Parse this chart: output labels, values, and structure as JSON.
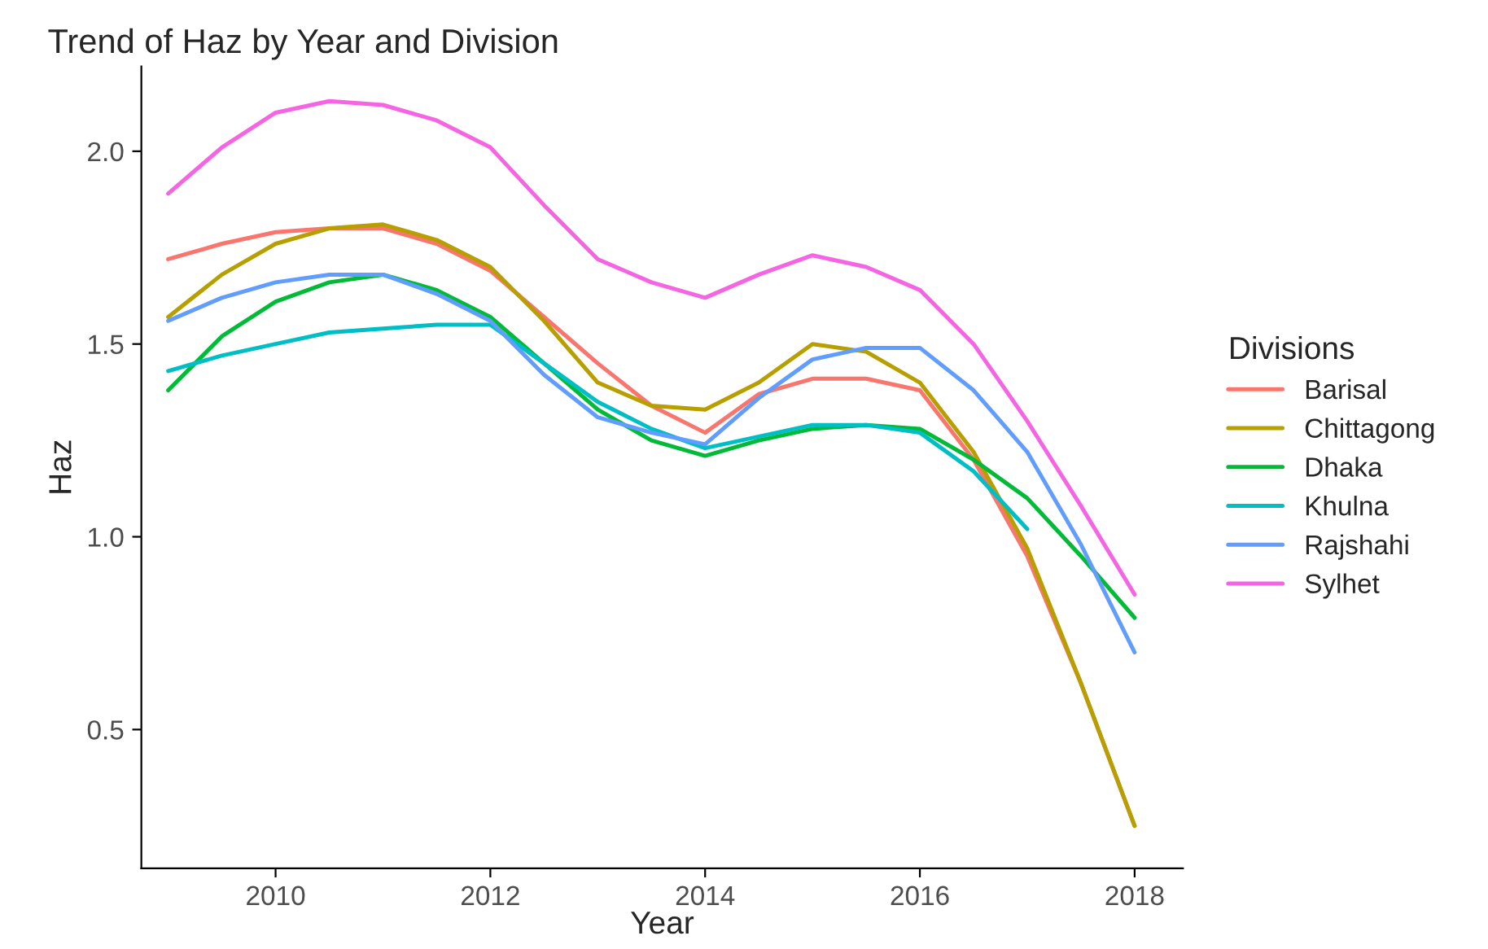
{
  "chart_data": {
    "type": "line",
    "title": "Trend of Haz by Year and Division",
    "xlabel": "Year",
    "ylabel": "Haz",
    "legend_title": "Divisions",
    "legend": "right",
    "grid": false,
    "marker": "none",
    "line_style": "solid",
    "x": [
      2009,
      2009.5,
      2010,
      2010.5,
      2011,
      2011.5,
      2012,
      2012.5,
      2013,
      2013.5,
      2014,
      2014.5,
      2015,
      2015.5,
      2016,
      2016.5,
      2017,
      2017.5,
      2018
    ],
    "xlim": [
      2008.75,
      2018.45
    ],
    "xticks": [
      2010,
      2012,
      2014,
      2016,
      2018
    ],
    "ylim": [
      0.14,
      2.22
    ],
    "yticks": [
      {
        "value": 0.5,
        "label": "0.5"
      },
      {
        "value": 1.0,
        "label": "1.0"
      },
      {
        "value": 1.5,
        "label": "1.5"
      },
      {
        "value": 2.0,
        "label": "2.0"
      }
    ],
    "series": [
      {
        "name": "Barisal",
        "color": "#f8766d",
        "values": [
          1.72,
          1.76,
          1.79,
          1.8,
          1.8,
          1.76,
          1.69,
          1.57,
          1.45,
          1.34,
          1.27,
          1.37,
          1.41,
          1.41,
          1.38,
          1.2,
          0.95,
          0.62,
          0.25
        ]
      },
      {
        "name": "Chittagong",
        "color": "#b79f00",
        "values": [
          1.57,
          1.68,
          1.76,
          1.8,
          1.81,
          1.77,
          1.7,
          1.56,
          1.4,
          1.34,
          1.33,
          1.4,
          1.5,
          1.48,
          1.4,
          1.22,
          0.97,
          0.62,
          0.25
        ]
      },
      {
        "name": "Dhaka",
        "color": "#00ba38",
        "values": [
          1.38,
          1.52,
          1.61,
          1.66,
          1.68,
          1.64,
          1.57,
          1.45,
          1.33,
          1.25,
          1.21,
          1.25,
          1.28,
          1.29,
          1.28,
          1.2,
          1.1,
          0.95,
          0.79
        ]
      },
      {
        "name": "Khulna",
        "color": "#00bfc4",
        "values": [
          1.43,
          1.47,
          1.5,
          1.53,
          1.54,
          1.55,
          1.55,
          1.45,
          1.35,
          1.28,
          1.23,
          1.26,
          1.29,
          1.29,
          1.27,
          1.17,
          1.02,
          null,
          null
        ]
      },
      {
        "name": "Rajshahi",
        "color": "#619cff",
        "values": [
          1.56,
          1.62,
          1.66,
          1.68,
          1.68,
          1.63,
          1.56,
          1.42,
          1.31,
          1.27,
          1.24,
          1.36,
          1.46,
          1.49,
          1.49,
          1.38,
          1.22,
          0.98,
          0.7
        ]
      },
      {
        "name": "Sylhet",
        "color": "#f564e3",
        "values": [
          1.89,
          2.01,
          2.1,
          2.13,
          2.12,
          2.08,
          2.01,
          1.86,
          1.72,
          1.66,
          1.62,
          1.68,
          1.73,
          1.7,
          1.64,
          1.5,
          1.3,
          1.08,
          0.85
        ]
      }
    ]
  }
}
